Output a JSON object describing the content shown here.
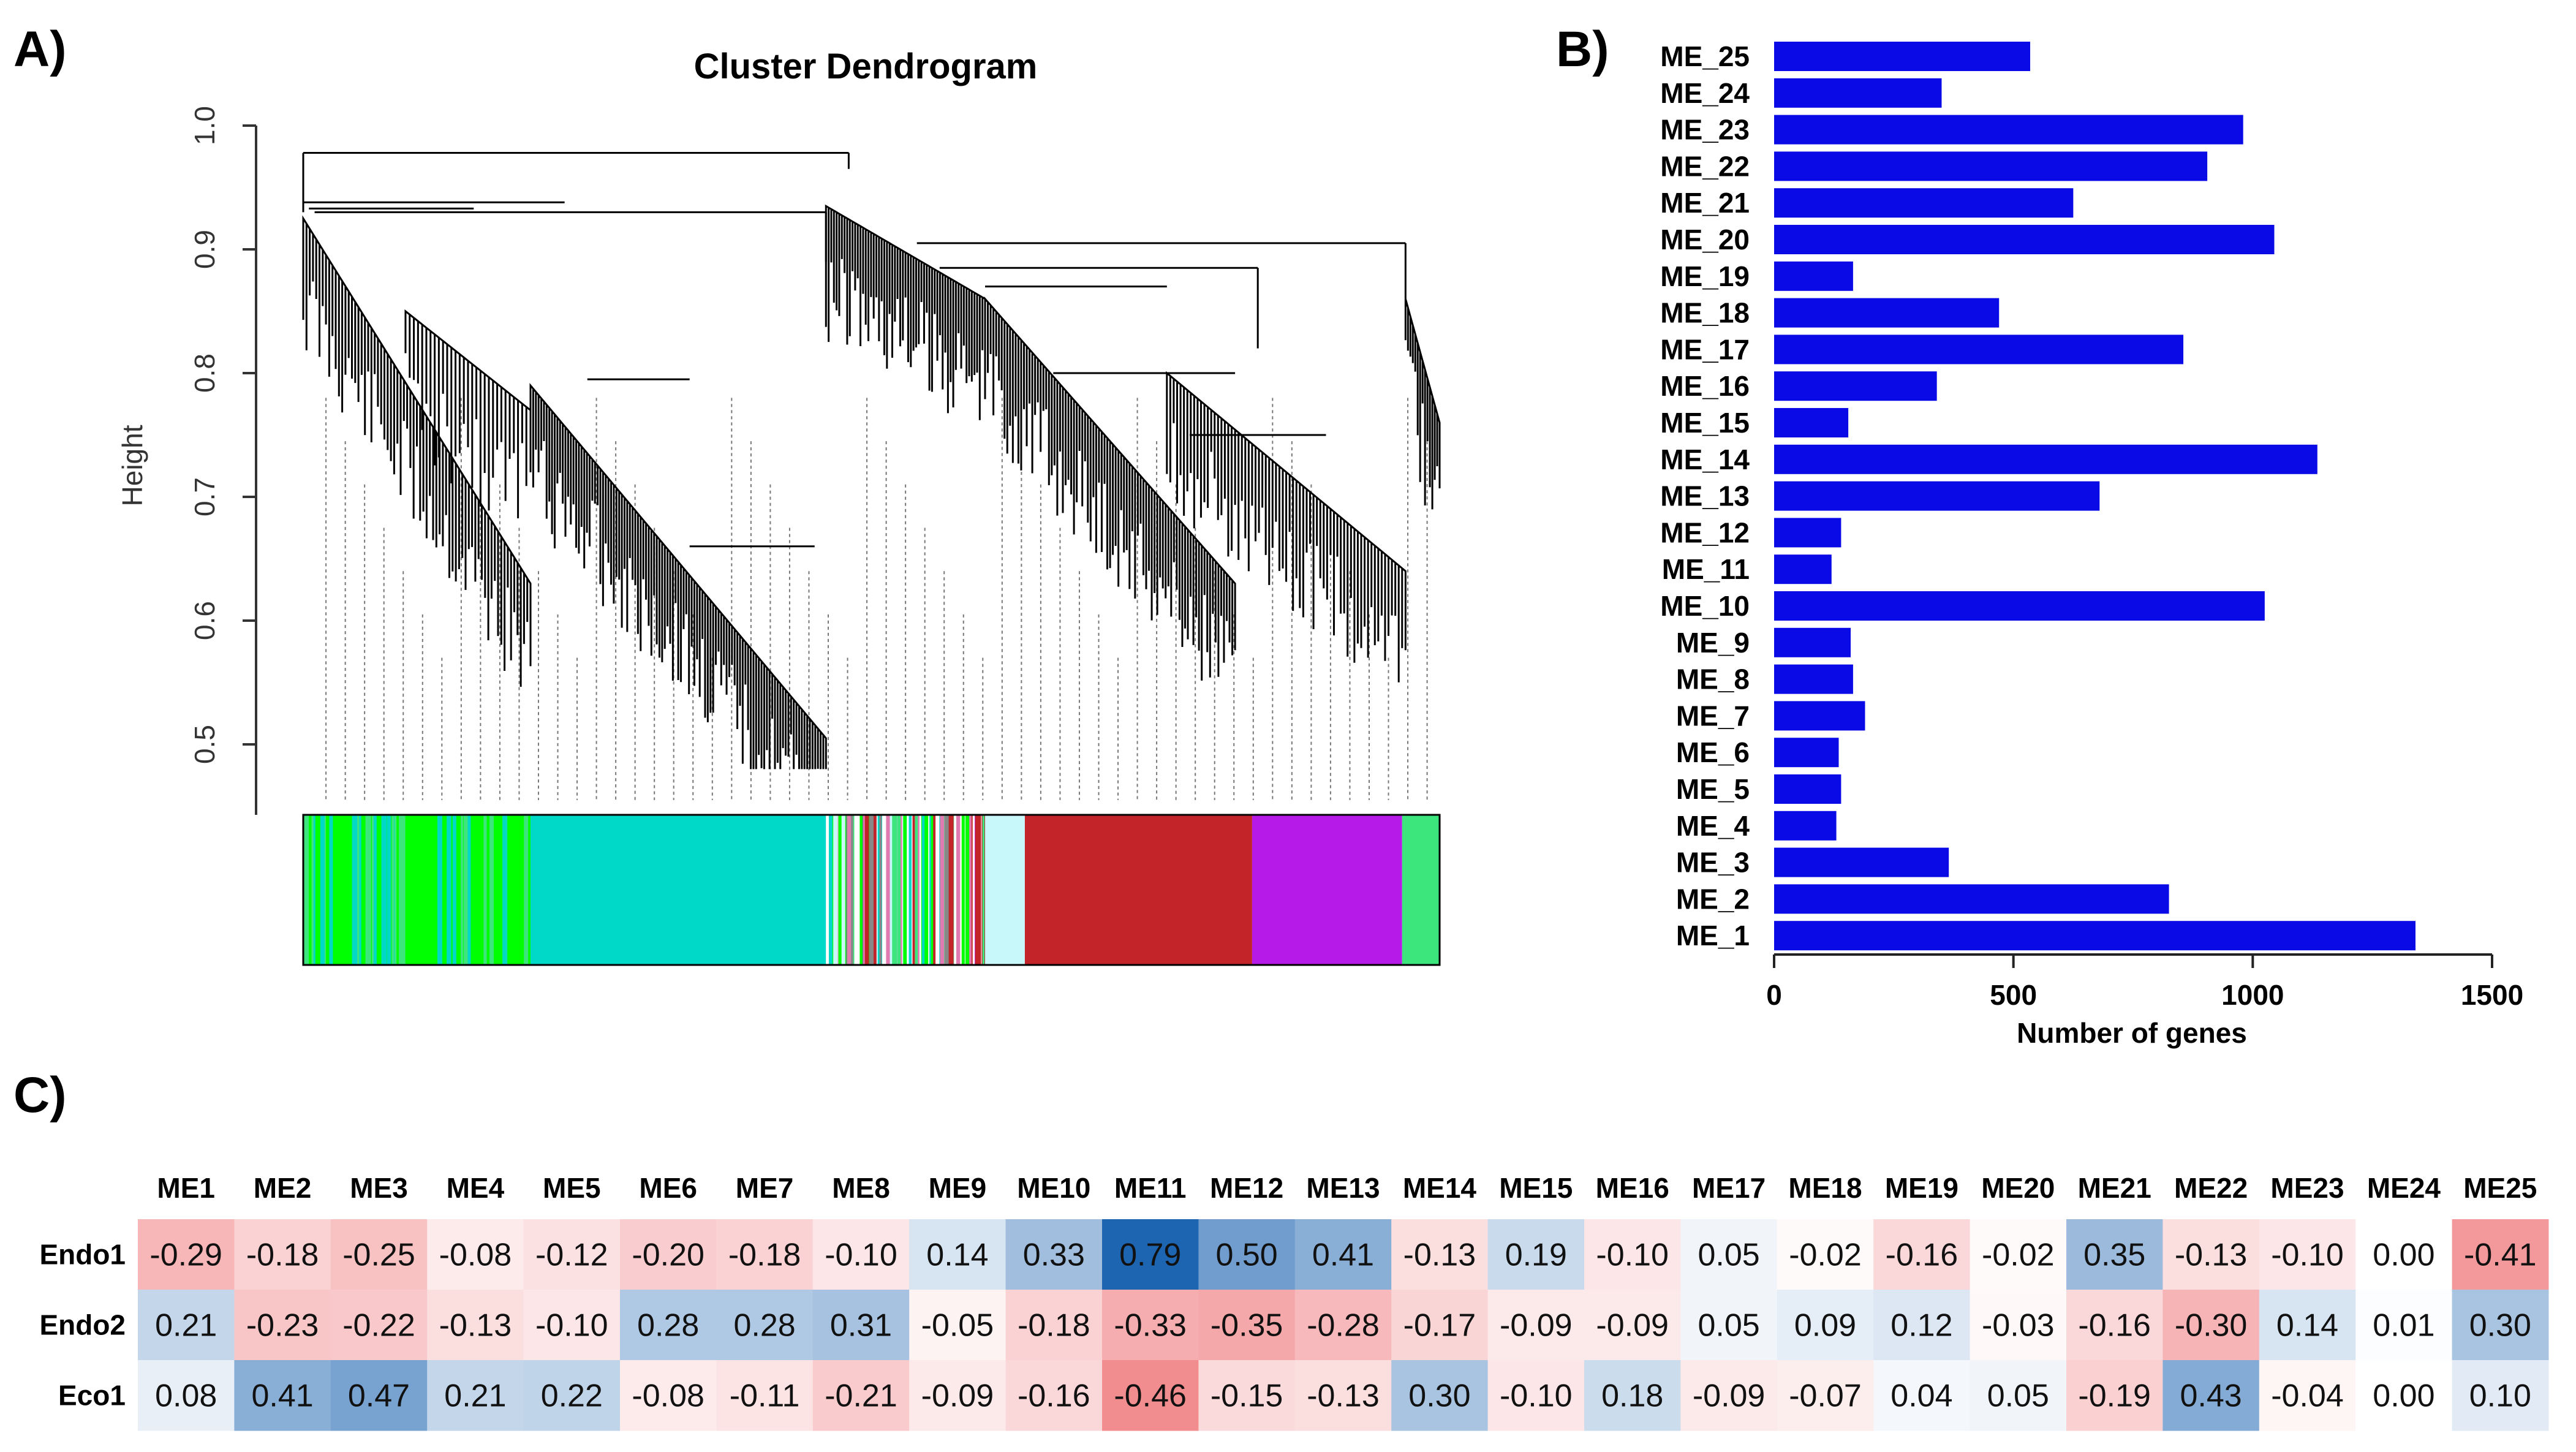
{
  "panels": {
    "a": "A)",
    "b": "B)",
    "c": "C)"
  },
  "dendrogram": {
    "title": "Cluster Dendrogram",
    "ylabel": "Height",
    "yticks": [
      "0.5",
      "0.6",
      "0.7",
      "0.8",
      "0.9",
      "1.0"
    ],
    "module_colors": [
      "#00ff00",
      "#00d8c8",
      "#c2242a",
      "#b61ae8",
      "#3de67d",
      "#c8f8fa"
    ]
  },
  "chart_data": [
    {
      "type": "dendrogram",
      "title": "Cluster Dendrogram",
      "ylabel": "Height",
      "ylim": [
        0.45,
        1.0
      ]
    },
    {
      "type": "bar",
      "orientation": "horizontal",
      "categories": [
        "ME_25",
        "ME_24",
        "ME_23",
        "ME_22",
        "ME_21",
        "ME_20",
        "ME_19",
        "ME_18",
        "ME_17",
        "ME_16",
        "ME_15",
        "ME_14",
        "ME_13",
        "ME_12",
        "ME_11",
        "ME_10",
        "ME_9",
        "ME_8",
        "ME_7",
        "ME_6",
        "ME_5",
        "ME_4",
        "ME_3",
        "ME_2",
        "ME_1"
      ],
      "values": [
        535,
        350,
        980,
        905,
        625,
        1045,
        165,
        470,
        855,
        340,
        155,
        1135,
        680,
        140,
        120,
        1025,
        160,
        165,
        190,
        135,
        140,
        130,
        365,
        825,
        1340
      ],
      "xlabel": "Number of genes",
      "xlim": [
        0,
        1500
      ],
      "xticks": [
        "0",
        "500",
        "1000",
        "1500"
      ],
      "color": "#0a0ae6"
    },
    {
      "type": "heatmap",
      "columns": [
        "ME1",
        "ME2",
        "ME3",
        "ME4",
        "ME5",
        "ME6",
        "ME7",
        "ME8",
        "ME9",
        "ME10",
        "ME11",
        "ME12",
        "ME13",
        "ME14",
        "ME15",
        "ME16",
        "ME17",
        "ME18",
        "ME19",
        "ME20",
        "ME21",
        "ME22",
        "ME23",
        "ME24",
        "ME25"
      ],
      "rows": [
        "Endo1",
        "Endo2",
        "Eco1"
      ],
      "values": [
        [
          "-0.29",
          "-0.18",
          "-0.25",
          "-0.08",
          "-0.12",
          "-0.20",
          "-0.18",
          "-0.10",
          "0.14",
          "0.33",
          "0.79",
          "0.50",
          "0.41",
          "-0.13",
          "0.19",
          "-0.10",
          "0.05",
          "-0.02",
          "-0.16",
          "-0.02",
          "0.35",
          "-0.13",
          "-0.10",
          "0.00",
          "-0.41"
        ],
        [
          "0.21",
          "-0.23",
          "-0.22",
          "-0.13",
          "-0.10",
          "0.28",
          "0.28",
          "0.31",
          "-0.05",
          "-0.18",
          "-0.33",
          "-0.35",
          "-0.28",
          "-0.17",
          "-0.09",
          "-0.09",
          "0.05",
          "0.09",
          "0.12",
          "-0.03",
          "-0.16",
          "-0.30",
          "0.14",
          "0.01",
          "0.30"
        ],
        [
          "0.08",
          "0.41",
          "0.47",
          "0.21",
          "0.22",
          "-0.08",
          "-0.11",
          "-0.21",
          "-0.09",
          "-0.16",
          "-0.46",
          "-0.15",
          "-0.13",
          "0.30",
          "-0.10",
          "0.18",
          "-0.09",
          "-0.07",
          "0.04",
          "0.05",
          "-0.19",
          "0.43",
          "-0.04",
          "0.00",
          "0.10"
        ]
      ],
      "colorscale": {
        "negative": "#e8383d",
        "zero": "#ffffff",
        "positive": "#1a62b0"
      }
    }
  ]
}
